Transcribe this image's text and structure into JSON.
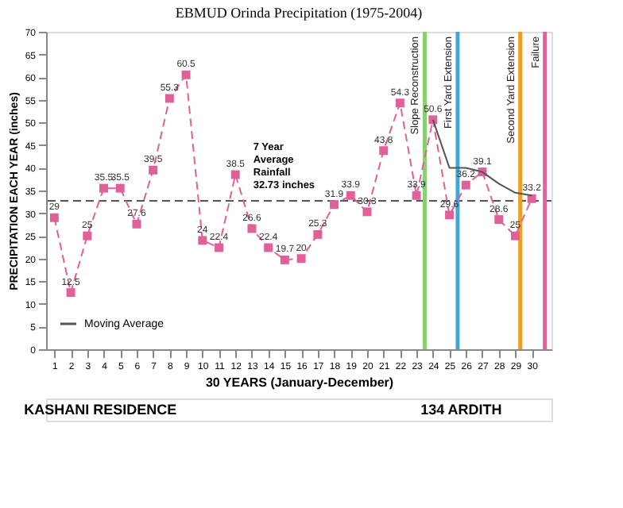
{
  "chart_data": {
    "type": "line",
    "title": "EBMUD Orinda Precipitation (1975-2004)",
    "xlabel": "30 YEARS (January-December)",
    "ylabel": "PRECIPITATION EACH YEAR (inches)",
    "x": [
      1,
      2,
      3,
      4,
      5,
      6,
      7,
      8,
      9,
      10,
      11,
      12,
      13,
      14,
      15,
      16,
      17,
      18,
      19,
      20,
      21,
      22,
      23,
      24,
      25,
      26,
      27,
      28,
      29,
      30
    ],
    "xlim": [
      0.5,
      31.2
    ],
    "xticks": [
      1,
      2,
      3,
      4,
      5,
      6,
      7,
      8,
      9,
      10,
      11,
      12,
      13,
      14,
      15,
      16,
      17,
      18,
      19,
      20,
      21,
      22,
      23,
      24,
      25,
      26,
      27,
      28,
      29,
      30
    ],
    "ylim": [
      0,
      70
    ],
    "yticks": [
      0,
      5,
      10,
      15,
      20,
      25,
      30,
      35,
      40,
      45,
      50,
      55,
      60,
      65,
      70
    ],
    "series": [
      {
        "color": "#e0609a",
        "line_style": "dashed",
        "marker": "square",
        "values": [
          29.0,
          12.5,
          25.0,
          35.5,
          35.5,
          27.6,
          39.5,
          55.3,
          60.5,
          24.0,
          22.4,
          38.5,
          26.6,
          22.4,
          19.7,
          20.0,
          25.3,
          31.9,
          33.9,
          30.3,
          43.8,
          54.3,
          33.9,
          50.6,
          29.6,
          36.2,
          39.1,
          28.6,
          25.0,
          33.2
        ],
        "value_labels": [
          "29",
          "12.5",
          "25",
          "35.5",
          "35.5",
          "27.6",
          "39.5",
          "55.3",
          "60.5",
          "24",
          "22.4",
          "38.5",
          "26.6",
          "22.4",
          "19.7",
          "20",
          "25.3",
          "31.9",
          "33.9",
          "30.3",
          "43.8",
          "54.3",
          "33.9",
          "50.6",
          "29.6",
          "36.2",
          "39.1",
          "28.6",
          "25",
          "33.2"
        ]
      },
      {
        "name": "Moving Average",
        "color": "#555555",
        "line_style": "solid",
        "marker": "none",
        "x": [
          24,
          25,
          26,
          27,
          28,
          29,
          30
        ],
        "values": [
          50.6,
          40.0,
          40.0,
          39.1,
          36.5,
          34.5,
          33.9
        ]
      }
    ],
    "legend": "bottom left",
    "grid": false,
    "ref_lines": [
      {
        "axis": "y",
        "value": 32.73,
        "label": "7 Year Average Rainfall 32.73 inches",
        "color": "#555555",
        "line_style": "dashed"
      },
      {
        "axis": "x",
        "value": 23.5,
        "label": "Slope Reconstruction",
        "color": "#88d070",
        "line_style": "solid"
      },
      {
        "axis": "x",
        "value": 25.5,
        "label": "First Yard Extension",
        "color": "#40a8d8",
        "line_style": "solid"
      },
      {
        "axis": "x",
        "value": 29.3,
        "label": "Second Yard Extension",
        "color": "#f0a020",
        "line_style": "solid"
      },
      {
        "axis": "x",
        "value": 30.8,
        "label": "Failure",
        "color": "#e060a0",
        "line_style": "solid"
      }
    ],
    "annotations": [
      "KASHANI RESIDENCE",
      "134 ARDITH"
    ]
  }
}
